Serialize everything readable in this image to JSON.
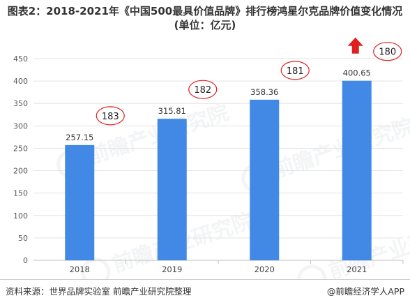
{
  "title": "图表2：2018-2021年《中国500最具价值品牌》排行榜鸿星尔克品牌价值变化情况(单位：亿元)",
  "watermark": "前瞻产业研究院",
  "footer": {
    "source": "资料来源：世界品牌实验室 前瞻产业研究院整理",
    "brand": "@前瞻经济学人APP"
  },
  "chart_data": {
    "type": "bar",
    "categories": [
      "2018",
      "2019",
      "2020",
      "2021"
    ],
    "values": [
      257.15,
      315.81,
      358.36,
      400.65
    ],
    "value_labels": [
      "257.15",
      "315.81",
      "358.36",
      "400.65"
    ],
    "ylim": [
      0,
      450
    ],
    "yticks": [
      0,
      50,
      100,
      150,
      200,
      250,
      300,
      350,
      400,
      450
    ],
    "grid": true,
    "bar_color": "#4189e5",
    "annotations": [
      {
        "category": "2018",
        "text": "183"
      },
      {
        "category": "2019",
        "text": "182"
      },
      {
        "category": "2020",
        "text": "181"
      },
      {
        "category": "2021",
        "text": "180",
        "arrow": "up"
      }
    ],
    "annotation_color": "#e02020"
  }
}
